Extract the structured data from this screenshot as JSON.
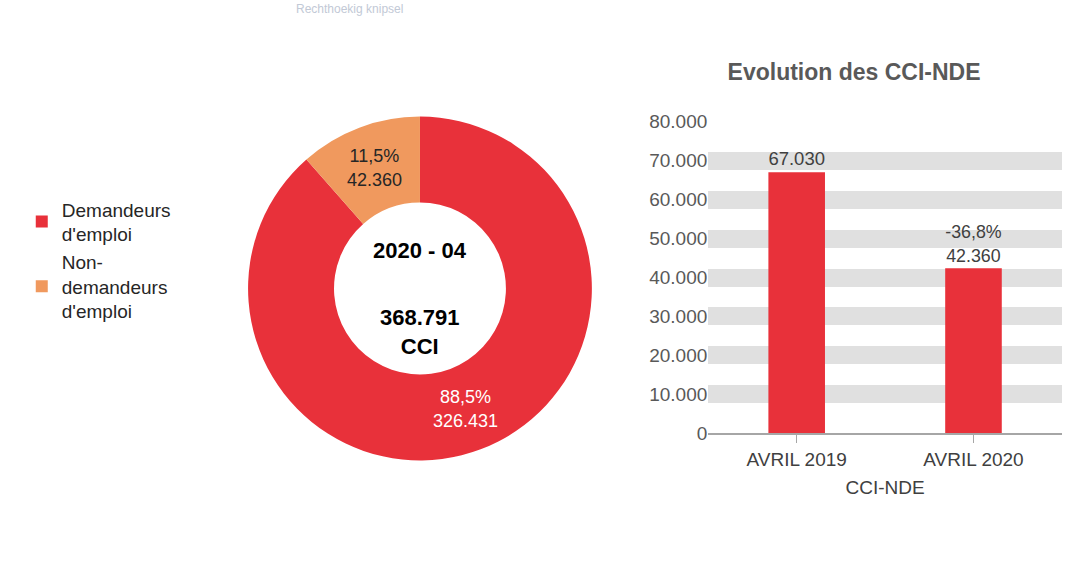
{
  "overlay": "Rechthoekig knipsel",
  "chart_data": [
    {
      "type": "pie",
      "center_title": "2020 - 04",
      "total": 368791,
      "total_label": "368.791",
      "total_unit": "CCI",
      "categories": [
        "Demandeurs\nd'emploi",
        "Non-\ndemandeurs\nd'emploi"
      ],
      "values": [
        326431,
        42360
      ],
      "value_labels": [
        "326.431",
        "42.360"
      ],
      "percentages": [
        88.5,
        11.5
      ],
      "percentage_labels": [
        "88,5%",
        "11,5%"
      ],
      "colors": [
        "#e8313a",
        "#f0995e"
      ],
      "legend": "left",
      "data_labels": true
    },
    {
      "type": "bar",
      "title": "Evolution des CCI-NDE",
      "xlabel": "CCI-NDE",
      "categories": [
        "AVRIL 2019",
        "AVRIL 2020"
      ],
      "values": [
        67030,
        42360
      ],
      "value_labels": [
        "67.030",
        "42.360"
      ],
      "change": [
        null,
        -36.8
      ],
      "change_labels": [
        null,
        "-36,8%"
      ],
      "color": "#e8313a",
      "ylim": [
        0,
        80000
      ],
      "yticks": [
        0,
        {
          "value": 10000,
          "label": "10.000"
        },
        {
          "value": 20000,
          "label": "20.000"
        },
        {
          "value": 30000,
          "label": "30.000"
        },
        {
          "value": 40000,
          "label": "40.000"
        },
        {
          "value": 50000,
          "label": "50.000"
        },
        {
          "value": 60000,
          "label": "60.000"
        },
        {
          "value": 70000,
          "label": "70.000"
        },
        {
          "value": 80000,
          "label": "80.000"
        }
      ],
      "grid": true,
      "data_labels": true
    }
  ]
}
